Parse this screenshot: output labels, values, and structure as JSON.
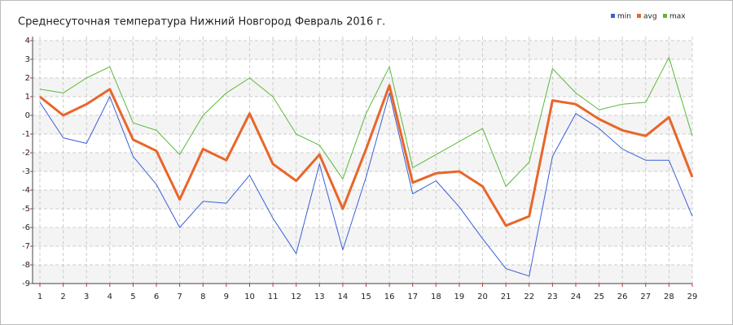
{
  "chart_data": {
    "type": "line",
    "title": "Среднесуточная температура Нижний Новгород  Февраль 2016 г.",
    "x": [
      1,
      2,
      3,
      4,
      5,
      6,
      7,
      8,
      9,
      10,
      11,
      12,
      13,
      14,
      15,
      16,
      17,
      18,
      19,
      20,
      21,
      22,
      23,
      24,
      25,
      26,
      27,
      28,
      29
    ],
    "xlim": [
      1,
      29
    ],
    "xticks": [
      1,
      2,
      3,
      4,
      5,
      6,
      7,
      8,
      9,
      10,
      11,
      12,
      13,
      14,
      15,
      16,
      17,
      18,
      19,
      20,
      21,
      22,
      23,
      24,
      25,
      26,
      27,
      28,
      29
    ],
    "ylim": [
      -9,
      4
    ],
    "yticks": [
      -9,
      -8,
      -7,
      -6,
      -5,
      -4,
      -3,
      -2,
      -1,
      0,
      1,
      2,
      3,
      4
    ],
    "grid": true,
    "legend": "top-right",
    "series": [
      {
        "name": "min",
        "color": "#3a5fd8",
        "width": 1,
        "values": [
          0.7,
          -1.2,
          -1.5,
          1.0,
          -2.2,
          -3.7,
          -6.0,
          -4.6,
          -4.7,
          -3.2,
          -5.5,
          -7.4,
          -2.6,
          -7.2,
          -3.3,
          1.2,
          -4.2,
          -3.5,
          -4.9,
          -6.6,
          -8.2,
          -8.6,
          -2.2,
          0.1,
          -0.7,
          -1.8,
          -2.4,
          -2.4,
          -5.4
        ]
      },
      {
        "name": "avg",
        "color": "#e8662a",
        "width": 3,
        "values": [
          1.0,
          0.0,
          0.6,
          1.4,
          -1.3,
          -1.9,
          -4.5,
          -1.8,
          -2.4,
          0.1,
          -2.6,
          -3.5,
          -2.1,
          -5.0,
          -1.8,
          1.6,
          -3.6,
          -3.1,
          -3.0,
          -3.8,
          -5.9,
          -5.4,
          0.8,
          0.6,
          -0.2,
          -0.8,
          -1.1,
          -0.1,
          -3.3
        ]
      },
      {
        "name": "max",
        "color": "#5cb83a",
        "width": 1,
        "values": [
          1.4,
          1.2,
          2.0,
          2.6,
          -0.4,
          -0.8,
          -2.1,
          0.0,
          1.2,
          2.0,
          1.0,
          -1.0,
          -1.6,
          -3.4,
          0.1,
          2.6,
          -2.8,
          -2.1,
          -1.4,
          -0.7,
          -3.8,
          -2.5,
          2.5,
          1.2,
          0.3,
          0.6,
          0.7,
          3.1,
          -1.1
        ]
      }
    ]
  }
}
